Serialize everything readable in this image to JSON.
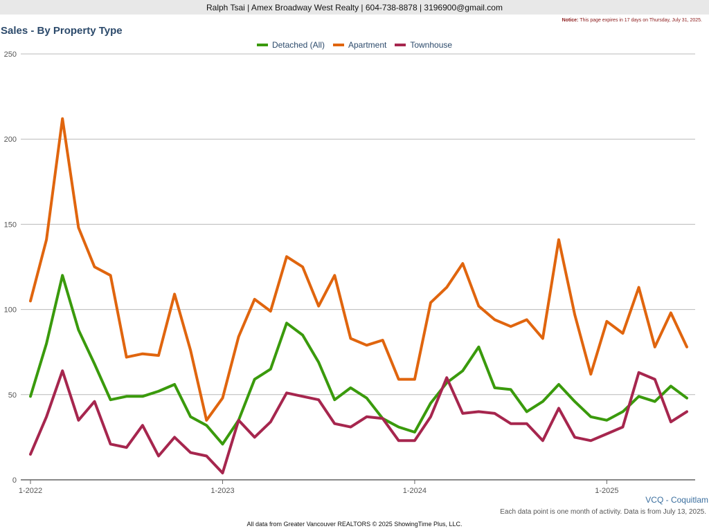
{
  "header": {
    "agent_info": "Ralph Tsai | Amex Broadway West Realty | 604-738-8878 | 3196900@gmail.com",
    "notice_label": "Notice:",
    "notice_text": "This page expires in 17 days on Thursday, July 31, 2025."
  },
  "colors": {
    "detached": "#3a9a0c",
    "apartment": "#e0650e",
    "townhouse": "#a6264e",
    "title": "#2c4a6b"
  },
  "chart_data": {
    "type": "line",
    "title": "Sales - By Property Type",
    "ylim": [
      0,
      250
    ],
    "yticks": [
      0,
      50,
      100,
      150,
      200,
      250
    ],
    "xtick_labels": [
      "1-2022",
      "1-2023",
      "1-2024",
      "1-2025"
    ],
    "xtick_indices": [
      0,
      12,
      24,
      36
    ],
    "legend_position": "top-center",
    "grid": true,
    "x": [
      "1-2022",
      "2-2022",
      "3-2022",
      "4-2022",
      "5-2022",
      "6-2022",
      "7-2022",
      "8-2022",
      "9-2022",
      "10-2022",
      "11-2022",
      "12-2022",
      "1-2023",
      "2-2023",
      "3-2023",
      "4-2023",
      "5-2023",
      "6-2023",
      "7-2023",
      "8-2023",
      "9-2023",
      "10-2023",
      "11-2023",
      "12-2023",
      "1-2024",
      "2-2024",
      "3-2024",
      "4-2024",
      "5-2024",
      "6-2024",
      "7-2024",
      "8-2024",
      "9-2024",
      "10-2024",
      "11-2024",
      "12-2024",
      "1-2025",
      "2-2025",
      "3-2025",
      "4-2025",
      "5-2025",
      "6-2025"
    ],
    "series": [
      {
        "name": "Detached (All)",
        "color": "#3a9a0c",
        "values": [
          49,
          80,
          120,
          88,
          68,
          47,
          49,
          49,
          52,
          56,
          37,
          32,
          21,
          35,
          59,
          65,
          92,
          85,
          69,
          47,
          54,
          48,
          36,
          31,
          28,
          45,
          57,
          64,
          78,
          54,
          53,
          40,
          46,
          56,
          46,
          37,
          35,
          40,
          49,
          46,
          55,
          48
        ]
      },
      {
        "name": "Apartment",
        "color": "#e0650e",
        "values": [
          105,
          141,
          212,
          148,
          125,
          120,
          72,
          74,
          73,
          109,
          76,
          35,
          48,
          84,
          106,
          99,
          131,
          125,
          102,
          120,
          83,
          79,
          82,
          59,
          59,
          104,
          113,
          127,
          102,
          94,
          90,
          94,
          83,
          141,
          97,
          62,
          93,
          86,
          113,
          78,
          98,
          78
        ]
      },
      {
        "name": "Townhouse",
        "color": "#a6264e",
        "values": [
          15,
          37,
          64,
          35,
          46,
          21,
          19,
          32,
          14,
          25,
          16,
          14,
          4,
          35,
          25,
          34,
          51,
          49,
          47,
          33,
          31,
          37,
          36,
          23,
          23,
          37,
          60,
          39,
          40,
          39,
          33,
          33,
          23,
          42,
          25,
          23,
          27,
          31,
          63,
          59,
          34,
          40
        ]
      }
    ]
  },
  "footer": {
    "region": "VCQ - Coquitlam",
    "note": "Each data point is one month of activity. Data is from July 13, 2025.",
    "source": "All data from Greater Vancouver REALTORS © 2025 ShowingTime Plus, LLC."
  }
}
